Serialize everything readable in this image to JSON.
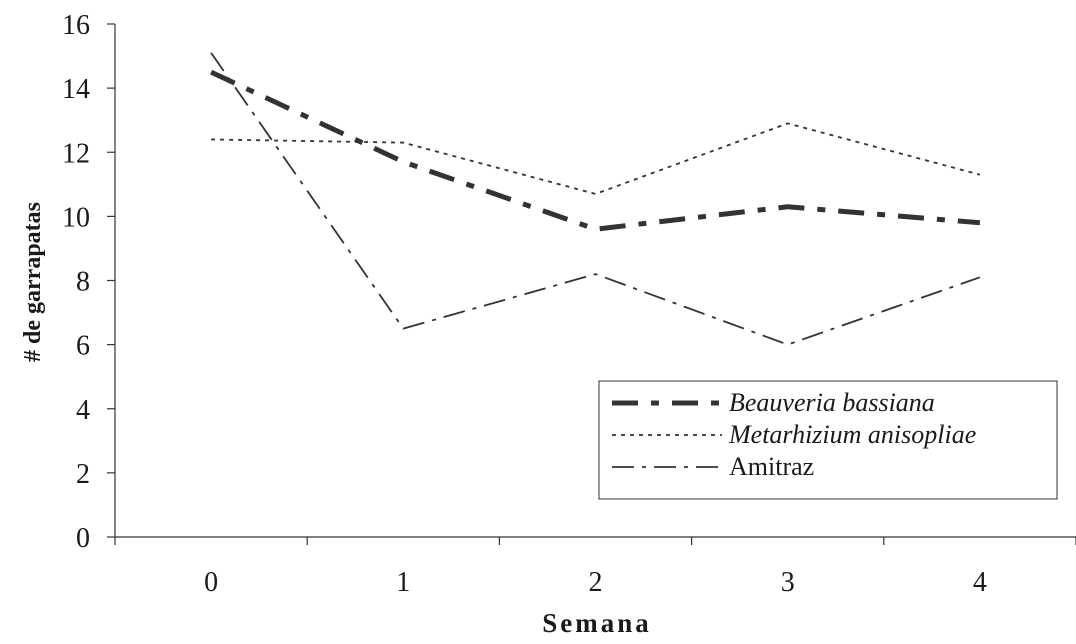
{
  "chart_data": {
    "type": "line",
    "title": "",
    "xlabel": "Semana",
    "ylabel": "# de garrapatas",
    "categories": [
      "0",
      "1",
      "2",
      "3",
      "4"
    ],
    "yticks": [
      "0",
      "2",
      "4",
      "6",
      "8",
      "10",
      "12",
      "14",
      "16"
    ],
    "ylim": [
      0,
      16
    ],
    "grid": false,
    "legend_position": "bottom-right",
    "series": [
      {
        "name": "Beauveria bassiana",
        "values": [
          14.5,
          11.7,
          9.6,
          10.3,
          9.8
        ],
        "italic": true,
        "style": "long-dash",
        "color": "#333333"
      },
      {
        "name": "Metarhizium anisopliae",
        "values": [
          12.4,
          12.3,
          10.7,
          12.9,
          11.3
        ],
        "italic": true,
        "style": "dotted",
        "color": "#333333"
      },
      {
        "name": "Amitraz",
        "values": [
          15.1,
          6.5,
          8.2,
          6.0,
          8.1
        ],
        "italic": false,
        "style": "dash-dot",
        "color": "#333333"
      }
    ]
  }
}
